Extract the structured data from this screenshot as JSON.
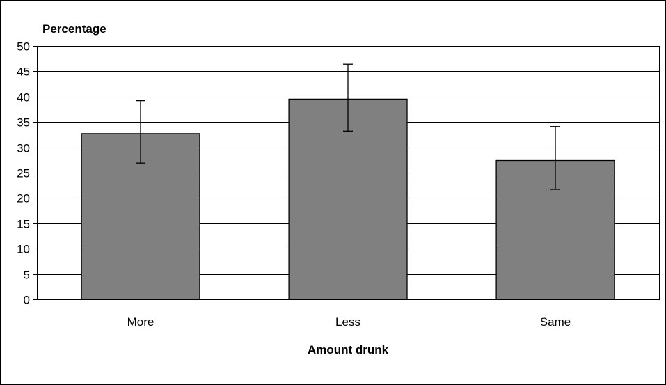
{
  "chart_data": {
    "type": "bar",
    "title": "",
    "ylabel": "Percentage",
    "xlabel": "Amount drunk",
    "categories": [
      "More",
      "Less",
      "Same"
    ],
    "values": [
      32.7,
      39.5,
      27.4
    ],
    "error_bars": {
      "lower": [
        26.9,
        33.2,
        21.7
      ],
      "upper": [
        39.2,
        46.4,
        34.1
      ]
    },
    "ylim": [
      0,
      50
    ],
    "yticks": [
      0,
      5,
      10,
      15,
      20,
      25,
      30,
      35,
      40,
      45,
      50
    ],
    "grid": true,
    "legend": "none",
    "colors": {
      "bar_fill": "#808080",
      "bar_stroke": "#000000",
      "gridline": "#000000",
      "background": "#ffffff"
    }
  }
}
